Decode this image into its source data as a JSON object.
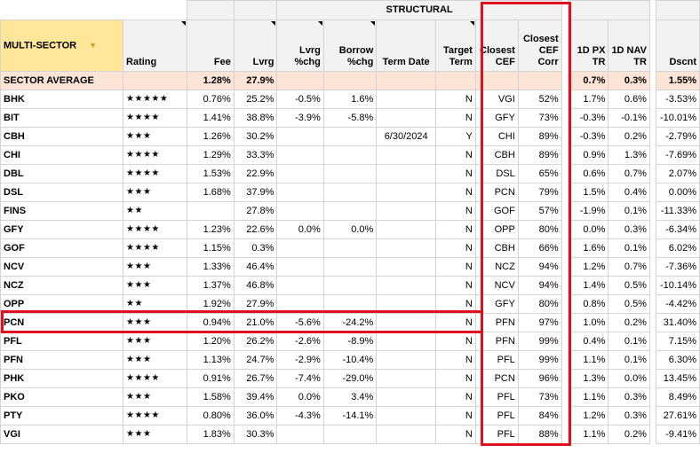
{
  "header": {
    "band_label": "STRUCTURAL",
    "sector_label": "MULTI-SECTOR",
    "columns": {
      "rating": "Rating",
      "fee": "Fee",
      "lvrg": "Lvrg",
      "lvrg_chg_1": "Lvrg",
      "lvrg_chg_2": "%chg",
      "borrow_1": "Borrow",
      "borrow_2": "%chg",
      "term_date": "Term Date",
      "target_1": "Target",
      "target_2": "Term",
      "closest_1": "Closest",
      "closest_2": "CEF",
      "corr_1": "Closest",
      "corr_2": "CEF",
      "corr_3": "Corr",
      "px_1": "1D PX",
      "px_2": "TR",
      "nav_1": "1D NAV",
      "nav_2": "TR",
      "dscnt": "Dscnt"
    }
  },
  "average": {
    "label": "SECTOR AVERAGE",
    "fee": "1.28%",
    "lvrg": "27.9%",
    "px": "0.7%",
    "nav": "0.3%",
    "dscnt": "1.55%"
  },
  "rows": [
    {
      "ticker": "BHK",
      "stars": "★★★★★",
      "fee": "0.76%",
      "lvrg": "25.2%",
      "lvrg_chg": "-0.5%",
      "borrow": "1.6%",
      "term_date": "",
      "target": "N",
      "closest": "VGI",
      "corr": "52%",
      "px": "1.7%",
      "nav": "0.6%",
      "dscnt": "-3.53%"
    },
    {
      "ticker": "BIT",
      "stars": "★★★★",
      "fee": "1.41%",
      "lvrg": "38.8%",
      "lvrg_chg": "-3.9%",
      "borrow": "-5.8%",
      "term_date": "",
      "target": "N",
      "closest": "GFY",
      "corr": "73%",
      "px": "-0.3%",
      "nav": "-0.1%",
      "dscnt": "-10.01%"
    },
    {
      "ticker": "CBH",
      "stars": "★★★",
      "fee": "1.26%",
      "lvrg": "30.2%",
      "lvrg_chg": "",
      "borrow": "",
      "term_date": "6/30/2024",
      "target": "Y",
      "closest": "CHI",
      "corr": "89%",
      "px": "-0.3%",
      "nav": "0.2%",
      "dscnt": "-2.79%"
    },
    {
      "ticker": "CHI",
      "stars": "★★★★",
      "fee": "1.29%",
      "lvrg": "33.3%",
      "lvrg_chg": "",
      "borrow": "",
      "term_date": "",
      "target": "N",
      "closest": "CBH",
      "corr": "89%",
      "px": "0.9%",
      "nav": "1.3%",
      "dscnt": "-7.69%"
    },
    {
      "ticker": "DBL",
      "stars": "★★★★",
      "fee": "1.53%",
      "lvrg": "22.9%",
      "lvrg_chg": "",
      "borrow": "",
      "term_date": "",
      "target": "N",
      "closest": "DSL",
      "corr": "65%",
      "px": "0.6%",
      "nav": "0.7%",
      "dscnt": "2.07%"
    },
    {
      "ticker": "DSL",
      "stars": "★★★",
      "fee": "1.68%",
      "lvrg": "37.9%",
      "lvrg_chg": "",
      "borrow": "",
      "term_date": "",
      "target": "N",
      "closest": "PCN",
      "corr": "79%",
      "px": "1.5%",
      "nav": "0.4%",
      "dscnt": "0.00%"
    },
    {
      "ticker": "FINS",
      "stars": "★★",
      "fee": "",
      "lvrg": "27.8%",
      "lvrg_chg": "",
      "borrow": "",
      "term_date": "",
      "target": "N",
      "closest": "GOF",
      "corr": "57%",
      "px": "-1.9%",
      "nav": "0.1%",
      "dscnt": "-11.33%"
    },
    {
      "ticker": "GFY",
      "stars": "★★★★",
      "fee": "1.23%",
      "lvrg": "22.6%",
      "lvrg_chg": "0.0%",
      "borrow": "0.0%",
      "term_date": "",
      "target": "N",
      "closest": "OPP",
      "corr": "80%",
      "px": "0.0%",
      "nav": "0.3%",
      "dscnt": "-6.34%"
    },
    {
      "ticker": "GOF",
      "stars": "★★★★",
      "fee": "1.15%",
      "lvrg": "0.3%",
      "lvrg_chg": "",
      "borrow": "",
      "term_date": "",
      "target": "N",
      "closest": "CBH",
      "corr": "66%",
      "px": "1.6%",
      "nav": "0.1%",
      "dscnt": "6.02%"
    },
    {
      "ticker": "NCV",
      "stars": "★★★",
      "fee": "1.33%",
      "lvrg": "46.4%",
      "lvrg_chg": "",
      "borrow": "",
      "term_date": "",
      "target": "N",
      "closest": "NCZ",
      "corr": "94%",
      "px": "1.2%",
      "nav": "0.7%",
      "dscnt": "-7.36%"
    },
    {
      "ticker": "NCZ",
      "stars": "★★★",
      "fee": "1.37%",
      "lvrg": "46.8%",
      "lvrg_chg": "",
      "borrow": "",
      "term_date": "",
      "target": "N",
      "closest": "NCV",
      "corr": "94%",
      "px": "1.4%",
      "nav": "0.5%",
      "dscnt": "-10.14%"
    },
    {
      "ticker": "OPP",
      "stars": "★★",
      "fee": "1.92%",
      "lvrg": "27.9%",
      "lvrg_chg": "",
      "borrow": "",
      "term_date": "",
      "target": "N",
      "closest": "GFY",
      "corr": "80%",
      "px": "0.8%",
      "nav": "0.5%",
      "dscnt": "-4.42%"
    },
    {
      "ticker": "PCN",
      "stars": "★★★",
      "fee": "0.94%",
      "lvrg": "21.0%",
      "lvrg_chg": "-5.6%",
      "borrow": "-24.2%",
      "term_date": "",
      "target": "N",
      "closest": "PFN",
      "corr": "97%",
      "px": "1.0%",
      "nav": "0.2%",
      "dscnt": "31.40%"
    },
    {
      "ticker": "PFL",
      "stars": "★★★",
      "fee": "1.20%",
      "lvrg": "26.2%",
      "lvrg_chg": "-2.6%",
      "borrow": "-8.9%",
      "term_date": "",
      "target": "N",
      "closest": "PFN",
      "corr": "99%",
      "px": "0.4%",
      "nav": "0.1%",
      "dscnt": "7.15%"
    },
    {
      "ticker": "PFN",
      "stars": "★★★",
      "fee": "1.13%",
      "lvrg": "24.7%",
      "lvrg_chg": "-2.9%",
      "borrow": "-10.4%",
      "term_date": "",
      "target": "N",
      "closest": "PFL",
      "corr": "99%",
      "px": "1.1%",
      "nav": "0.1%",
      "dscnt": "6.30%"
    },
    {
      "ticker": "PHK",
      "stars": "★★★★",
      "fee": "0.91%",
      "lvrg": "26.7%",
      "lvrg_chg": "-7.4%",
      "borrow": "-29.0%",
      "term_date": "",
      "target": "N",
      "closest": "PCN",
      "corr": "96%",
      "px": "1.3%",
      "nav": "0.0%",
      "dscnt": "13.45%"
    },
    {
      "ticker": "PKO",
      "stars": "★★★",
      "fee": "1.58%",
      "lvrg": "39.4%",
      "lvrg_chg": "0.0%",
      "borrow": "3.4%",
      "term_date": "",
      "target": "N",
      "closest": "PFL",
      "corr": "73%",
      "px": "1.1%",
      "nav": "0.3%",
      "dscnt": "8.49%"
    },
    {
      "ticker": "PTY",
      "stars": "★★★★",
      "fee": "0.80%",
      "lvrg": "36.0%",
      "lvrg_chg": "-4.3%",
      "borrow": "-14.1%",
      "term_date": "",
      "target": "N",
      "closest": "PFL",
      "corr": "84%",
      "px": "1.2%",
      "nav": "0.3%",
      "dscnt": "27.61%"
    },
    {
      "ticker": "VGI",
      "stars": "★★★",
      "fee": "1.83%",
      "lvrg": "30.3%",
      "lvrg_chg": "",
      "borrow": "",
      "term_date": "",
      "target": "N",
      "closest": "PFL",
      "corr": "88%",
      "px": "1.1%",
      "nav": "0.2%",
      "dscnt": "-9.41%"
    }
  ],
  "colors": {
    "highlight_box": "#e0101e",
    "sector_header_bg": "#ffe699",
    "average_row_bg": "#fce4d6",
    "header_bg": "#f2f2f2"
  }
}
